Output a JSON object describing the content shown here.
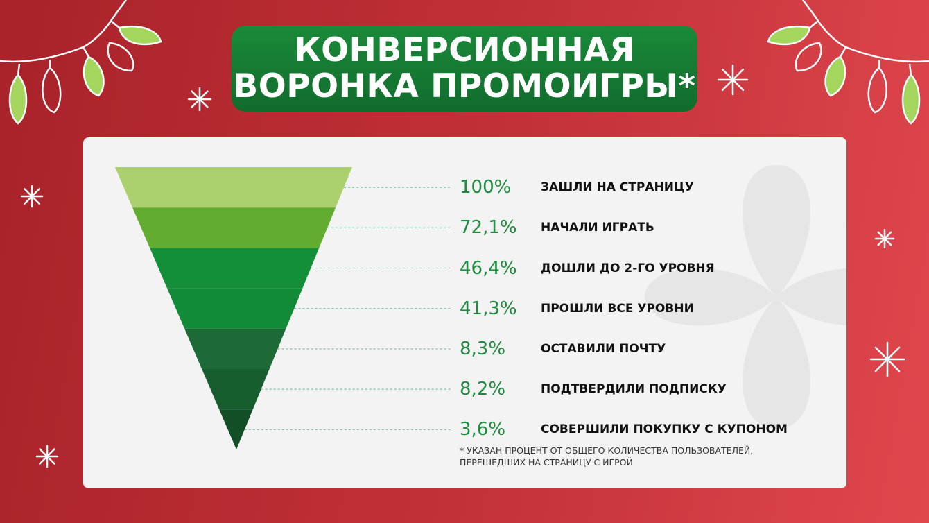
{
  "title": {
    "line1": "КОНВЕРСИОННАЯ",
    "line2": "ВОРОНКА ПРОМОИГРЫ*"
  },
  "chart_data": {
    "type": "funnel",
    "categories": [
      "ЗАШЛИ НА СТРАНИЦУ",
      "НАЧАЛИ ИГРАТЬ",
      "ДОШЛИ ДО 2-ГО УРОВНЯ",
      "ПРОШЛИ ВСЕ УРОВНИ",
      "ОСТАВИЛИ ПОЧТУ",
      "ПОДТВЕРДИЛИ ПОДПИСКУ",
      "СОВЕРШИЛИ ПОКУПКУ С КУПОНОМ"
    ],
    "values": [
      100,
      72.1,
      46.4,
      41.3,
      8.3,
      8.2,
      3.6
    ],
    "value_labels": [
      "100%",
      "72,1%",
      "46,4%",
      "41,3%",
      "8,3%",
      "8,2%",
      "3,6%"
    ],
    "colors": [
      "#abd06e",
      "#62ad30",
      "#138f3a",
      "#138a38",
      "#1c6b36",
      "#175e2f",
      "#124e26"
    ],
    "footnote_line1": "* УКАЗАН ПРОЦЕНТ ОТ ОБЩЕГО КОЛИЧЕСТВА ПОЛЬЗОВАТЕЛЕЙ,",
    "footnote_line2": "ПЕРЕШЕДШИХ НА СТРАНИЦУ С ИГРОЙ"
  },
  "colors": {
    "background": "#c3313a",
    "title_box": "#167d34",
    "value_text": "#1e8b3e",
    "bulb_green": "#a4d65e",
    "leader_line": "#5fb08a"
  },
  "icons": [
    "garland-icon",
    "snowflake-icon",
    "clover-watermark-icon"
  ]
}
